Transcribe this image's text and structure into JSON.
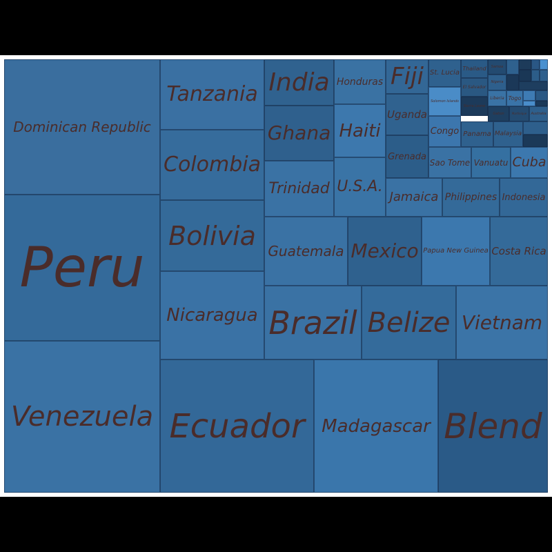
{
  "chart_data": {
    "type": "treemap",
    "colors": {
      "background": "#000000",
      "frame": "#ffffff",
      "text": "#4a2c2a",
      "tile_default": "#3a6e9e"
    },
    "items": [
      {
        "label": "Peru",
        "color": "#346a9a"
      },
      {
        "label": "Dominican Republic",
        "color": "#3a6e9e"
      },
      {
        "label": "Venezuela",
        "color": "#3a72a4"
      },
      {
        "label": "Ecuador",
        "color": "#336898"
      },
      {
        "label": "Madagascar",
        "color": "#3a76ab"
      },
      {
        "label": "Blend",
        "color": "#2a5a87"
      },
      {
        "label": "Tanzania",
        "color": "#3a70a2"
      },
      {
        "label": "Colombia",
        "color": "#366c9c"
      },
      {
        "label": "Bolivia",
        "color": "#346a99"
      },
      {
        "label": "Nicaragua",
        "color": "#3a72a5"
      },
      {
        "label": "India",
        "color": "#30628f"
      },
      {
        "label": "Ghana",
        "color": "#2f608d"
      },
      {
        "label": "Trinidad",
        "color": "#3a72a4"
      },
      {
        "label": "Honduras",
        "color": "#3a72a3"
      },
      {
        "label": "Haiti",
        "color": "#3d78ad"
      },
      {
        "label": "U.S.A.",
        "color": "#3a74a6"
      },
      {
        "label": "Fiji",
        "color": "#336796"
      },
      {
        "label": "Uganda",
        "color": "#30628f"
      },
      {
        "label": "Grenada",
        "color": "#2c5d89"
      },
      {
        "label": "St. Lucia",
        "color": "#2f618e"
      },
      {
        "label": "Thailand",
        "color": "#2a5a86"
      },
      {
        "label": "El Salvador",
        "color": "#2a5882"
      },
      {
        "label": "Solomon Islands",
        "color": "#4a8cc7"
      },
      {
        "label": "Sierra Leone",
        "color": "#1c3a5a"
      },
      {
        "label": "Samoa",
        "color": "#234a70"
      },
      {
        "label": "Nigeria",
        "color": "#2e5f8c"
      },
      {
        "label": "Liberia",
        "color": "#3a73a5"
      },
      {
        "label": "Togo",
        "color": "#3a74a8"
      },
      {
        "label": "Gabon",
        "color": "#1e3f60"
      },
      {
        "label": "Martinique",
        "color": "#244b71"
      },
      {
        "label": "Australia",
        "color": "#2e5f8c"
      },
      {
        "label": "Congo",
        "color": "#3c76ad"
      },
      {
        "label": "Panama",
        "color": "#2f618e"
      },
      {
        "label": "Malaysia",
        "color": "#2f618e"
      },
      {
        "label": "Sao Tome",
        "color": "#3a72a4"
      },
      {
        "label": "Vanuatu",
        "color": "#3570a1"
      },
      {
        "label": "Cuba",
        "color": "#3c78ae"
      },
      {
        "label": "Jamaica",
        "color": "#3a72a4"
      },
      {
        "label": "Philippines",
        "color": "#346a99"
      },
      {
        "label": "Indonesia",
        "color": "#336897"
      },
      {
        "label": "Guatemala",
        "color": "#3a72a4"
      },
      {
        "label": "Mexico",
        "color": "#2f618e"
      },
      {
        "label": "Papua New Guinea",
        "color": "#3c78ae"
      },
      {
        "label": "Costa Rica",
        "color": "#346a99"
      },
      {
        "label": "Brazil",
        "color": "#3a72a4"
      },
      {
        "label": "Belize",
        "color": "#346b9b"
      },
      {
        "label": "Vietnam",
        "color": "#3b74a7"
      }
    ],
    "small_tiles": [
      {
        "color": "#2f618e"
      },
      {
        "color": "#1d3b5a"
      },
      {
        "color": "#2a5785"
      },
      {
        "color": "#4a90cf"
      },
      {
        "color": "#1a3756"
      },
      {
        "color": "#2c5d89"
      },
      {
        "color": "#2e5f8c"
      },
      {
        "color": "#1b3858"
      },
      {
        "color": "#3e7bb4"
      },
      {
        "color": "#2a5884"
      },
      {
        "color": "#4a8dca"
      },
      {
        "color": "#1b3958"
      },
      {
        "color": "#2e5f8c"
      },
      {
        "color": "#1b3958"
      },
      {
        "color": "#1e3e5f"
      }
    ]
  }
}
